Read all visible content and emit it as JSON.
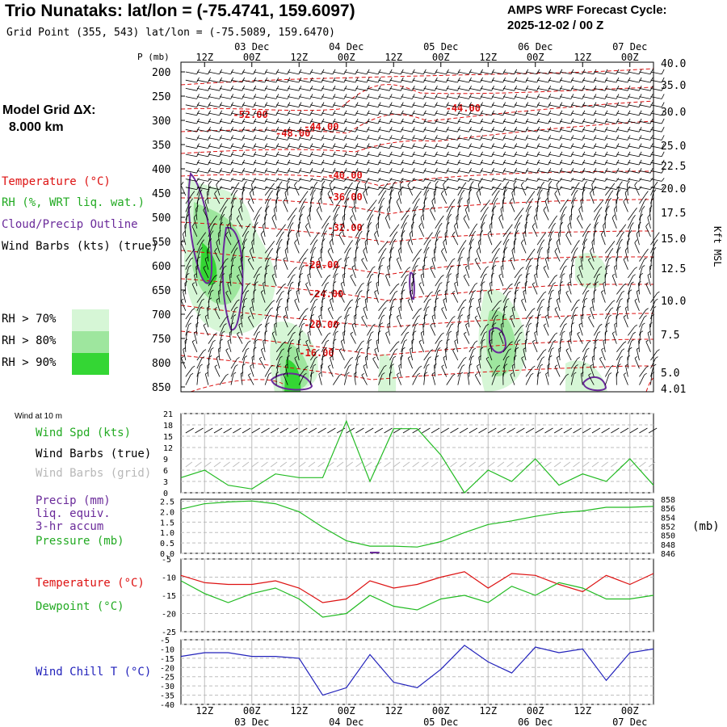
{
  "header": {
    "title": "Trio Nunataks:  lat/lon = (-75.4741, 159.6097)",
    "subtitle": "Grid Point (355, 543) lat/lon = (-75.5089, 159.6470)",
    "cycle_line1": "AMPS WRF Forecast Cycle:",
    "cycle_line2": "2025-12-02 / 00  Z"
  },
  "model_grid": {
    "line1": "Model Grid ΔX:",
    "line2": "8.000 km"
  },
  "upper_legend": {
    "temperature": "Temperature (°C)",
    "rh": "RH (%, WRT liq. wat.)",
    "cloud": "Cloud/Precip Outline",
    "barbs": "Wind Barbs (kts) (true)",
    "rh70": "RH > 70%",
    "rh80": "RH > 80%",
    "rh90": "RH > 90%"
  },
  "colors": {
    "temperature": "#dd1111",
    "rh70": "#d6f6d6",
    "rh80": "#9ee69e",
    "rh90": "#34d634",
    "cloud": "#6a2a9a",
    "speed": "#22bb22",
    "windchill": "#2222bb",
    "grid_barbs": "#b8b8b8"
  },
  "time_axis": {
    "top_hours": [
      "12Z",
      "00Z",
      "12Z",
      "00Z",
      "12Z",
      "00Z",
      "12Z",
      "00Z",
      "12Z",
      "00Z"
    ],
    "top_dates": [
      "03 Dec",
      "04 Dec",
      "05 Dec",
      "06 Dec",
      "07 Dec"
    ],
    "bottom_hours": [
      "12Z",
      "00Z",
      "12Z",
      "00Z",
      "12Z",
      "00Z",
      "12Z",
      "00Z",
      "12Z",
      "00Z"
    ],
    "bottom_dates": [
      "03 Dec",
      "04 Dec",
      "05 Dec",
      "06 Dec",
      "07 Dec"
    ]
  },
  "surface_legend": {
    "wind_at": "Wind at 10 m",
    "speed": "Wind Spd (kts)",
    "barbs_true": "Wind Barbs (true)",
    "barbs_grid": "Wind Barbs (grid)",
    "precip": "Precip (mm)",
    "liq": "liq. equiv.",
    "accum": "3-hr accum",
    "pressure": "Pressure (mb)",
    "pressure_unit": "(mb)",
    "temperature": "Temperature (°C)",
    "dewpoint": "Dewpoint (°C)",
    "windchill": "Wind Chill T (°C)"
  },
  "chart_data": [
    {
      "type": "heatmap",
      "panel": "vertical profile",
      "y_axis_title": "P (mb)",
      "right_axis_title": "Kft MSL",
      "pressure_ticks": [
        200,
        250,
        300,
        350,
        400,
        450,
        500,
        550,
        600,
        650,
        700,
        750,
        800,
        850
      ],
      "height_ticks": [
        "40.0",
        "35.0",
        "30.0",
        "25.0",
        "22.5",
        "20.0",
        "17.5",
        "15.0",
        "12.5",
        "10.0",
        "7.5",
        "5.0",
        "4.01"
      ],
      "temperature_labels": [
        "-52.00",
        "-48.00",
        "-44.00",
        "-44.00",
        "-40.00",
        "-36.00",
        "-32.00",
        "-28.00",
        "-24.00",
        "-20.00",
        "-16.00"
      ],
      "temperature_label_positions": [
        {
          "label": "-52.00",
          "x": 0.55,
          "p": 295
        },
        {
          "label": "-48.00",
          "x": 1.0,
          "p": 333
        },
        {
          "label": "-44.00",
          "x": 1.3,
          "p": 320
        },
        {
          "label": "-44.00",
          "x": 2.8,
          "p": 282
        },
        {
          "label": "-40.00",
          "x": 1.55,
          "p": 420
        },
        {
          "label": "-36.00",
          "x": 1.55,
          "p": 465
        },
        {
          "label": "-32.00",
          "x": 1.55,
          "p": 528
        },
        {
          "label": "-28.00",
          "x": 1.3,
          "p": 605
        },
        {
          "label": "-24.00",
          "x": 1.35,
          "p": 665
        },
        {
          "label": "-20.00",
          "x": 1.3,
          "p": 728
        },
        {
          "label": "-16.00",
          "x": 1.25,
          "p": 787
        }
      ]
    },
    {
      "type": "line",
      "panel": "wind",
      "y_ticks": [
        0,
        3,
        6,
        9,
        12,
        15,
        18,
        21
      ],
      "ylim": [
        0,
        21
      ],
      "x": [
        0,
        0.25,
        0.5,
        0.75,
        1.0,
        1.25,
        1.5,
        1.75,
        2.0,
        2.25,
        2.5,
        2.75,
        3.0,
        3.25,
        3.5,
        3.75,
        4.0,
        4.25,
        4.5,
        4.75,
        5.0
      ],
      "series": [
        {
          "name": "Wind Spd (kts)",
          "values": [
            4,
            6,
            2,
            1,
            5,
            4,
            4,
            19,
            3,
            17,
            17,
            10,
            0,
            6,
            3,
            9,
            2,
            5,
            3,
            9,
            2
          ]
        }
      ]
    },
    {
      "type": "line",
      "panel": "precip/pressure",
      "left_ticks": [
        "0.0",
        "0.5",
        "1.0",
        "1.5",
        "2.0",
        "2.5"
      ],
      "right_ticks": [
        "858",
        "856",
        "854",
        "852",
        "850",
        "848",
        "846"
      ],
      "x": [
        0,
        0.25,
        0.5,
        0.75,
        1.0,
        1.25,
        1.5,
        1.75,
        2.0,
        2.25,
        2.5,
        2.75,
        3.0,
        3.25,
        3.5,
        3.75,
        4.0,
        4.25,
        4.5,
        4.75,
        5.0
      ],
      "series": [
        {
          "name": "Pressure (mb)",
          "values": [
            855.8,
            857.0,
            857.4,
            857.6,
            857.0,
            855.2,
            851.8,
            848.8,
            847.6,
            847.6,
            847.4,
            848.6,
            850.6,
            852.4,
            853.2,
            854.2,
            855.0,
            855.4,
            856.2,
            856.2,
            856.4
          ]
        }
      ]
    },
    {
      "type": "line",
      "panel": "temperature",
      "y_ticks": [
        -5,
        -10,
        -15,
        -20,
        -25
      ],
      "ylim": [
        -25,
        -5
      ],
      "x": [
        0,
        0.25,
        0.5,
        0.75,
        1.0,
        1.25,
        1.5,
        1.75,
        2.0,
        2.25,
        2.5,
        2.75,
        3.0,
        3.25,
        3.5,
        3.75,
        4.0,
        4.25,
        4.5,
        4.75,
        5.0
      ],
      "series": [
        {
          "name": "Temperature (°C)",
          "values": [
            -9.5,
            -11.5,
            -12,
            -12,
            -11,
            -13,
            -17,
            -16,
            -11,
            -13,
            -12,
            -10,
            -8.5,
            -13,
            -9,
            -9.5,
            -12,
            -14,
            -9.5,
            -12,
            -9
          ]
        },
        {
          "name": "Dewpoint (°C)",
          "values": [
            -11,
            -14.5,
            -17,
            -14.5,
            -13,
            -16,
            -21,
            -20,
            -15,
            -18,
            -19,
            -16,
            -15,
            -17,
            -12.5,
            -15,
            -11.5,
            -13,
            -16,
            -16,
            -15
          ]
        }
      ]
    },
    {
      "type": "line",
      "panel": "wind chill",
      "y_ticks": [
        -5,
        -10,
        -15,
        -20,
        -25,
        -30,
        -35,
        -40
      ],
      "ylim": [
        -40,
        -5
      ],
      "x": [
        0,
        0.25,
        0.5,
        0.75,
        1.0,
        1.25,
        1.5,
        1.75,
        2.0,
        2.25,
        2.5,
        2.75,
        3.0,
        3.25,
        3.5,
        3.75,
        4.0,
        4.25,
        4.5,
        4.75,
        5.0
      ],
      "series": [
        {
          "name": "Wind Chill T (°C)",
          "values": [
            -14,
            -12,
            -12,
            -14,
            -14,
            -15,
            -35,
            -31,
            -13,
            -28,
            -31,
            -21,
            -8,
            -17,
            -23,
            -9,
            -12,
            -10,
            -27,
            -12,
            -10
          ]
        }
      ]
    }
  ]
}
